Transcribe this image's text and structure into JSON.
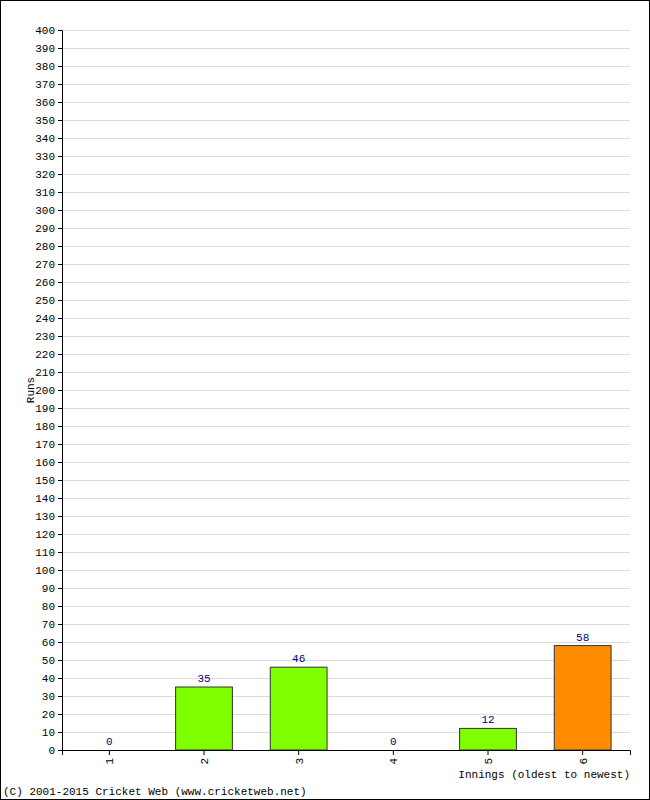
{
  "chart_data": {
    "type": "bar",
    "x_label": "Innings (oldest to newest)",
    "y_label": "Runs",
    "categories": [
      "1",
      "2",
      "3",
      "4",
      "5",
      "6"
    ],
    "values": [
      0,
      35,
      46,
      0,
      12,
      58
    ],
    "colors": [
      "#80ff00",
      "#80ff00",
      "#80ff00",
      "#80ff00",
      "#80ff00",
      "#ff8c00"
    ],
    "ylim": [
      0,
      400
    ],
    "yticks": [
      0,
      10,
      20,
      30,
      40,
      50,
      60,
      70,
      80,
      90,
      100,
      110,
      120,
      130,
      140,
      150,
      160,
      170,
      180,
      190,
      200,
      210,
      220,
      230,
      240,
      250,
      260,
      270,
      280,
      290,
      300,
      310,
      320,
      330,
      340,
      350,
      360,
      370,
      380,
      390,
      400
    ],
    "grid": true,
    "data_labels": true,
    "annotations": [
      "(C) 2001-2015 Cricket Web (www.cricketweb.net)"
    ]
  }
}
